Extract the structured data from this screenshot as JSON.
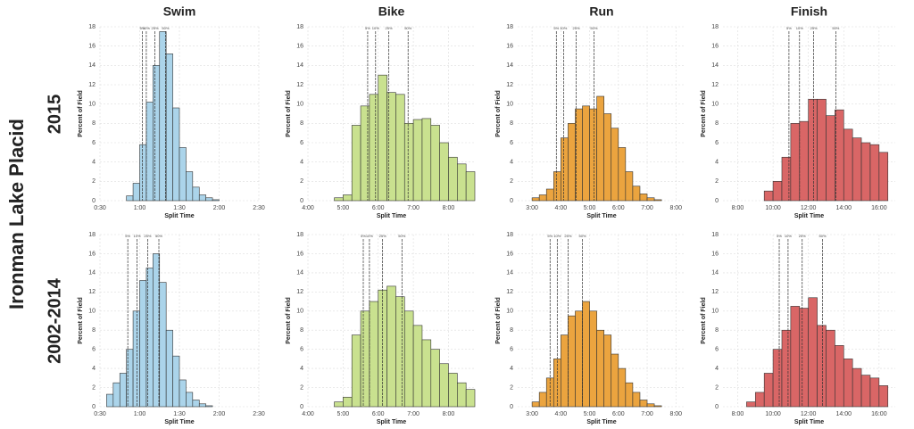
{
  "figure": {
    "title": "Ironman Lake Placid",
    "rows": [
      "2015",
      "2002-2014"
    ]
  },
  "chart_data": [
    {
      "type": "histogram",
      "title": "Swim",
      "xlabel": "Split Time",
      "ylabel": "Percent of Field",
      "color": "#abd4ea",
      "bins": [
        50,
        55,
        60,
        65,
        70,
        75,
        80,
        85,
        90,
        95,
        100,
        105,
        110,
        115,
        120
      ],
      "values": [
        0.5,
        1.8,
        5.8,
        10.2,
        14,
        17.5,
        15.2,
        9.6,
        5.5,
        3,
        1.4,
        0.6,
        0.3,
        0.1
      ],
      "xlim": [
        30,
        150
      ],
      "xticks": [
        {
          "value": 30,
          "label": "0:30"
        },
        {
          "value": 60,
          "label": "1:00"
        },
        {
          "value": 90,
          "label": "1:30"
        },
        {
          "value": 120,
          "label": "2:00"
        },
        {
          "value": 150,
          "label": "2:30"
        }
      ],
      "ylim": [
        0,
        18
      ],
      "yticks": [
        0,
        2,
        4,
        6,
        8,
        10,
        12,
        14,
        16,
        18
      ],
      "grid": true,
      "percentiles": [
        {
          "value": 62,
          "label": "5%"
        },
        {
          "value": 65,
          "label": "10%"
        },
        {
          "value": 71.5,
          "label": "25%"
        },
        {
          "value": 79.5,
          "label": "50%"
        }
      ]
    },
    {
      "type": "histogram",
      "title": "Bike",
      "xlabel": "Split Time",
      "ylabel": "Percent of Field",
      "color": "#c9e18f",
      "bins": [
        285,
        300,
        315,
        330,
        345,
        360,
        375,
        390,
        405,
        420,
        435,
        450,
        465,
        480,
        495,
        510,
        525
      ],
      "values": [
        0.3,
        0.6,
        7.8,
        9.8,
        11,
        13,
        11.2,
        11,
        8,
        8.4,
        8.5,
        7.8,
        6,
        4.5,
        3.8,
        3
      ],
      "xlim": [
        240,
        525
      ],
      "xticks": [
        {
          "value": 240,
          "label": "4:00"
        },
        {
          "value": 300,
          "label": "5:00"
        },
        {
          "value": 360,
          "label": "6:00"
        },
        {
          "value": 420,
          "label": "7:00"
        },
        {
          "value": 480,
          "label": "8:00"
        }
      ],
      "ylim": [
        0,
        18
      ],
      "yticks": [
        0,
        2,
        4,
        6,
        8,
        10,
        12,
        14,
        16,
        18
      ],
      "grid": true,
      "percentiles": [
        {
          "value": 342,
          "label": "5%"
        },
        {
          "value": 355.5,
          "label": "10%"
        },
        {
          "value": 378,
          "label": "25%"
        },
        {
          "value": 411,
          "label": "50%"
        }
      ]
    },
    {
      "type": "histogram",
      "title": "Run",
      "xlabel": "Split Time",
      "ylabel": "Percent of Field",
      "color": "#eba43f",
      "bins": [
        180,
        195,
        210,
        225,
        240,
        255,
        270,
        285,
        300,
        315,
        330,
        345,
        360,
        375,
        390,
        405,
        420,
        435,
        450
      ],
      "values": [
        0.3,
        0.6,
        1.2,
        3,
        6.5,
        8,
        9.5,
        9.8,
        9.5,
        10.8,
        9,
        7.5,
        5.5,
        3,
        1.5,
        0.7,
        0.3,
        0.1
      ],
      "xlim": [
        150,
        500
      ],
      "xticks": [
        {
          "value": 180,
          "label": "3:00"
        },
        {
          "value": 240,
          "label": "4:00"
        },
        {
          "value": 300,
          "label": "5:00"
        },
        {
          "value": 360,
          "label": "6:00"
        },
        {
          "value": 420,
          "label": "7:00"
        },
        {
          "value": 480,
          "label": "8:00"
        }
      ],
      "ylim": [
        0,
        18
      ],
      "yticks": [
        0,
        2,
        4,
        6,
        8,
        10,
        12,
        14,
        16,
        18
      ],
      "grid": true,
      "percentiles": [
        {
          "value": 230.6,
          "label": "5%"
        },
        {
          "value": 245.6,
          "label": "10%"
        },
        {
          "value": 272,
          "label": "25%"
        },
        {
          "value": 309,
          "label": "50%"
        }
      ]
    },
    {
      "type": "histogram",
      "title": "Finish",
      "xlabel": "Split Time",
      "ylabel": "Percent of Field",
      "color": "#d96666",
      "bins": [
        570,
        600,
        630,
        660,
        690,
        720,
        750,
        780,
        810,
        840,
        870,
        900,
        930,
        960,
        990
      ],
      "values": [
        1,
        2,
        4.5,
        8,
        8.2,
        10.5,
        10.5,
        8.8,
        9.4,
        7.4,
        6.5,
        6,
        5.8,
        5
      ],
      "xlim": [
        430,
        1015
      ],
      "xticks": [
        {
          "value": 480,
          "label": "8:00"
        },
        {
          "value": 600,
          "label": "10:00"
        },
        {
          "value": 720,
          "label": "12:00"
        },
        {
          "value": 840,
          "label": "14:00"
        },
        {
          "value": 960,
          "label": "16:00"
        }
      ],
      "ylim": [
        0,
        18
      ],
      "yticks": [
        0,
        2,
        4,
        6,
        8,
        10,
        12,
        14,
        16,
        18
      ],
      "grid": true,
      "percentiles": [
        {
          "value": 654,
          "label": "5%"
        },
        {
          "value": 690,
          "label": "10%"
        },
        {
          "value": 738,
          "label": "25%"
        },
        {
          "value": 813,
          "label": "50%"
        }
      ]
    },
    {
      "type": "histogram",
      "xlabel": "Split Time",
      "ylabel": "Percent of Field",
      "color": "#abd4ea",
      "bins": [
        35,
        40,
        45,
        50,
        55,
        60,
        65,
        70,
        75,
        80,
        85,
        90,
        95,
        100,
        105,
        110,
        115
      ],
      "values": [
        1.3,
        2.5,
        3.5,
        6,
        10,
        13.2,
        14.5,
        16,
        13,
        8,
        5.3,
        2.8,
        1.5,
        0.7,
        0.3,
        0.1
      ],
      "xlim": [
        30,
        150
      ],
      "xticks": [
        {
          "value": 30,
          "label": "0:30"
        },
        {
          "value": 60,
          "label": "1:00"
        },
        {
          "value": 90,
          "label": "1:30"
        },
        {
          "value": 120,
          "label": "2:00"
        },
        {
          "value": 150,
          "label": "2:30"
        }
      ],
      "ylim": [
        0,
        18
      ],
      "yticks": [
        0,
        2,
        4,
        6,
        8,
        10,
        12,
        14,
        16,
        18
      ],
      "grid": true,
      "percentiles": [
        {
          "value": 51,
          "label": "5%"
        },
        {
          "value": 58,
          "label": "10%"
        },
        {
          "value": 66,
          "label": "25%"
        },
        {
          "value": 74.5,
          "label": "50%"
        }
      ]
    },
    {
      "type": "histogram",
      "xlabel": "Split Time",
      "ylabel": "Percent of Field",
      "color": "#c9e18f",
      "bins": [
        285,
        300,
        315,
        330,
        345,
        360,
        375,
        390,
        405,
        420,
        435,
        450,
        465,
        480,
        495,
        510,
        525
      ],
      "values": [
        0.5,
        1,
        7.5,
        10,
        11,
        12.2,
        12.6,
        11.5,
        10,
        8.5,
        7,
        6,
        4.5,
        3.5,
        2.5,
        1.8
      ],
      "xlim": [
        240,
        525
      ],
      "xticks": [
        {
          "value": 240,
          "label": "4:00"
        },
        {
          "value": 300,
          "label": "5:00"
        },
        {
          "value": 360,
          "label": "6:00"
        },
        {
          "value": 420,
          "label": "7:00"
        },
        {
          "value": 480,
          "label": "8:00"
        }
      ],
      "ylim": [
        0,
        18
      ],
      "yticks": [
        0,
        2,
        4,
        6,
        8,
        10,
        12,
        14,
        16,
        18
      ],
      "grid": true,
      "percentiles": [
        {
          "value": 334.5,
          "label": "5%"
        },
        {
          "value": 345,
          "label": "10%"
        },
        {
          "value": 367.5,
          "label": "25%"
        },
        {
          "value": 400.5,
          "label": "50%"
        }
      ]
    },
    {
      "type": "histogram",
      "xlabel": "Split Time",
      "ylabel": "Percent of Field",
      "color": "#eba43f",
      "bins": [
        180,
        195,
        210,
        225,
        240,
        255,
        270,
        285,
        300,
        315,
        330,
        345,
        360,
        375,
        390,
        405,
        420,
        435,
        450
      ],
      "values": [
        0.5,
        1.5,
        3,
        5,
        7.5,
        9.5,
        10,
        11,
        10,
        8,
        7.5,
        5.5,
        4,
        2.5,
        1.5,
        0.7,
        0.3,
        0.1
      ],
      "xlim": [
        150,
        500
      ],
      "xticks": [
        {
          "value": 180,
          "label": "3:00"
        },
        {
          "value": 240,
          "label": "4:00"
        },
        {
          "value": 300,
          "label": "5:00"
        },
        {
          "value": 360,
          "label": "6:00"
        },
        {
          "value": 420,
          "label": "7:00"
        },
        {
          "value": 480,
          "label": "8:00"
        }
      ],
      "ylim": [
        0,
        18
      ],
      "yticks": [
        0,
        2,
        4,
        6,
        8,
        10,
        12,
        14,
        16,
        18
      ],
      "grid": true,
      "percentiles": [
        {
          "value": 217.5,
          "label": "5%"
        },
        {
          "value": 232.5,
          "label": "10%"
        },
        {
          "value": 255,
          "label": "25%"
        },
        {
          "value": 285,
          "label": "50%"
        }
      ]
    },
    {
      "type": "histogram",
      "xlabel": "Split Time",
      "ylabel": "Percent of Field",
      "color": "#d96666",
      "bins": [
        510,
        540,
        570,
        600,
        630,
        660,
        690,
        720,
        750,
        780,
        810,
        840,
        870,
        900,
        930,
        960,
        990
      ],
      "values": [
        0.5,
        1.5,
        3.5,
        6,
        8,
        10.5,
        10.3,
        11.4,
        8.5,
        8,
        6.4,
        5,
        4,
        3.3,
        3,
        2.2
      ],
      "xlim": [
        430,
        1015
      ],
      "xticks": [
        {
          "value": 480,
          "label": "8:00"
        },
        {
          "value": 600,
          "label": "10:00"
        },
        {
          "value": 720,
          "label": "12:00"
        },
        {
          "value": 840,
          "label": "14:00"
        },
        {
          "value": 960,
          "label": "16:00"
        }
      ],
      "ylim": [
        0,
        18
      ],
      "yticks": [
        0,
        2,
        4,
        6,
        8,
        10,
        12,
        14,
        16,
        18
      ],
      "grid": true,
      "percentiles": [
        {
          "value": 621,
          "label": "5%"
        },
        {
          "value": 651,
          "label": "10%"
        },
        {
          "value": 699,
          "label": "25%"
        },
        {
          "value": 768,
          "label": "50%"
        }
      ]
    }
  ]
}
